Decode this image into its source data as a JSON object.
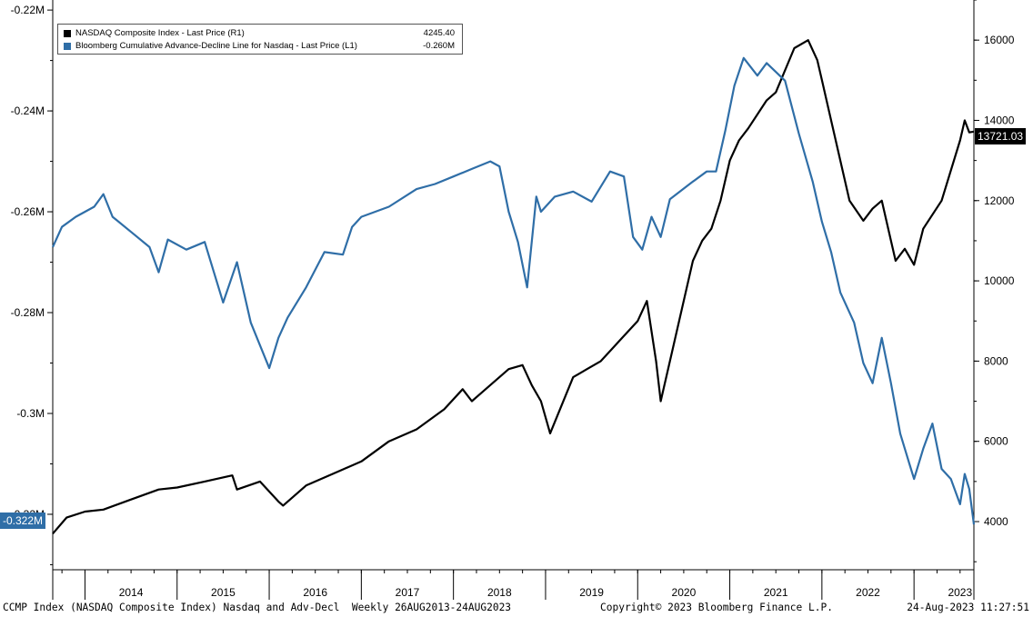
{
  "legend": {
    "items": [
      {
        "label": "NASDAQ Composite Index - Last Price (R1)",
        "value": "4245.40",
        "color": "#000000"
      },
      {
        "label": "Bloomberg Cumulative Advance-Decline Line for Nasdaq - Last Price (L1)",
        "value": "-0.260M",
        "color": "#2f6ea7"
      }
    ]
  },
  "badges": {
    "right_last": "13721.03",
    "left_last": "-0.322M"
  },
  "footer": {
    "left": "CCMP Index (NASDAQ Composite Index) Nasdaq and Adv-Decl  Weekly 26AUG2013-24AUG2023",
    "center": "Copyright© 2023 Bloomberg Finance L.P.",
    "right": "24-Aug-2023 11:27:51"
  },
  "chart_data": {
    "type": "line",
    "x_tick_labels": [
      "2014",
      "2015",
      "2016",
      "2017",
      "2018",
      "2019",
      "2020",
      "2021",
      "2022",
      "2023"
    ],
    "x_range": [
      2013.65,
      2023.65
    ],
    "left_axis": {
      "tick_labels": [
        "-0.22M",
        "-0.24M",
        "-0.26M",
        "-0.28M",
        "-0.3M",
        "-0.32M"
      ],
      "tick_values": [
        -0.22,
        -0.24,
        -0.26,
        -0.28,
        -0.3,
        -0.32
      ],
      "range": [
        -0.331,
        -0.218
      ],
      "units": "M"
    },
    "right_axis": {
      "tick_labels": [
        "4000",
        "6000",
        "8000",
        "10000",
        "12000",
        "14000",
        "16000"
      ],
      "tick_values": [
        4000,
        6000,
        8000,
        10000,
        12000,
        14000,
        16000
      ],
      "range": [
        2800,
        17000
      ]
    },
    "series": [
      {
        "name": "NASDAQ Composite Index - Last Price (R1)",
        "axis": "right",
        "color": "#000000",
        "x": [
          2013.65,
          2013.8,
          2014.0,
          2014.2,
          2014.5,
          2014.8,
          2015.0,
          2015.3,
          2015.6,
          2015.65,
          2015.9,
          2016.1,
          2016.15,
          2016.4,
          2016.8,
          2017.0,
          2017.3,
          2017.6,
          2017.9,
          2018.1,
          2018.2,
          2018.3,
          2018.6,
          2018.75,
          2018.85,
          2018.95,
          2019.05,
          2019.3,
          2019.45,
          2019.6,
          2019.8,
          2020.0,
          2020.1,
          2020.2,
          2020.25,
          2020.4,
          2020.6,
          2020.7,
          2020.8,
          2020.9,
          2021.0,
          2021.1,
          2021.2,
          2021.4,
          2021.5,
          2021.7,
          2021.85,
          2021.95,
          2022.0,
          2022.1,
          2022.3,
          2022.45,
          2022.55,
          2022.65,
          2022.75,
          2022.8,
          2022.9,
          2023.0,
          2023.1,
          2023.3,
          2023.5,
          2023.55,
          2023.6,
          2023.65
        ],
        "y": [
          3700,
          4100,
          4250,
          4300,
          4550,
          4800,
          4850,
          5000,
          5150,
          4800,
          5000,
          4500,
          4400,
          4900,
          5300,
          5500,
          6000,
          6300,
          6800,
          7300,
          7000,
          7200,
          7800,
          7900,
          7400,
          7000,
          6200,
          7600,
          7800,
          8000,
          8500,
          9000,
          9500,
          8000,
          7000,
          8500,
          10500,
          11000,
          11300,
          12000,
          13000,
          13500,
          13800,
          14500,
          14700,
          15800,
          16000,
          15500,
          15000,
          14000,
          12000,
          11500,
          11800,
          12000,
          11000,
          10500,
          10800,
          10400,
          11300,
          12000,
          13500,
          14000,
          13700,
          13721
        ]
      },
      {
        "name": "Bloomberg Cumulative Advance-Decline Line for Nasdaq - Last Price (L1)",
        "axis": "left",
        "color": "#2f6ea7",
        "x": [
          2013.65,
          2013.75,
          2013.9,
          2014.1,
          2014.2,
          2014.3,
          2014.5,
          2014.7,
          2014.8,
          2014.9,
          2015.1,
          2015.3,
          2015.5,
          2015.65,
          2015.8,
          2016.0,
          2016.1,
          2016.2,
          2016.4,
          2016.6,
          2016.8,
          2016.9,
          2017.0,
          2017.3,
          2017.6,
          2017.8,
          2018.0,
          2018.2,
          2018.4,
          2018.5,
          2018.6,
          2018.7,
          2018.8,
          2018.9,
          2018.95,
          2019.1,
          2019.3,
          2019.5,
          2019.7,
          2019.85,
          2019.95,
          2020.05,
          2020.15,
          2020.25,
          2020.35,
          2020.6,
          2020.75,
          2020.85,
          2020.95,
          2021.05,
          2021.15,
          2021.3,
          2021.4,
          2021.6,
          2021.75,
          2021.9,
          2022.0,
          2022.1,
          2022.2,
          2022.35,
          2022.45,
          2022.55,
          2022.65,
          2022.75,
          2022.85,
          2022.95,
          2023.0,
          2023.1,
          2023.2,
          2023.3,
          2023.4,
          2023.5,
          2023.55,
          2023.6,
          2023.65
        ],
        "y": [
          -0.267,
          -0.263,
          -0.261,
          -0.259,
          -0.2565,
          -0.261,
          -0.264,
          -0.267,
          -0.272,
          -0.2655,
          -0.2675,
          -0.266,
          -0.278,
          -0.27,
          -0.282,
          -0.291,
          -0.285,
          -0.281,
          -0.275,
          -0.268,
          -0.2685,
          -0.263,
          -0.261,
          -0.259,
          -0.2555,
          -0.2545,
          -0.253,
          -0.2515,
          -0.25,
          -0.251,
          -0.26,
          -0.266,
          -0.275,
          -0.257,
          -0.26,
          -0.257,
          -0.256,
          -0.258,
          -0.252,
          -0.253,
          -0.265,
          -0.2675,
          -0.261,
          -0.265,
          -0.2575,
          -0.254,
          -0.252,
          -0.252,
          -0.244,
          -0.235,
          -0.2295,
          -0.233,
          -0.2305,
          -0.234,
          -0.2445,
          -0.254,
          -0.262,
          -0.268,
          -0.276,
          -0.282,
          -0.29,
          -0.294,
          -0.285,
          -0.294,
          -0.304,
          -0.31,
          -0.313,
          -0.307,
          -0.302,
          -0.311,
          -0.313,
          -0.318,
          -0.312,
          -0.315,
          -0.322
        ]
      }
    ]
  }
}
